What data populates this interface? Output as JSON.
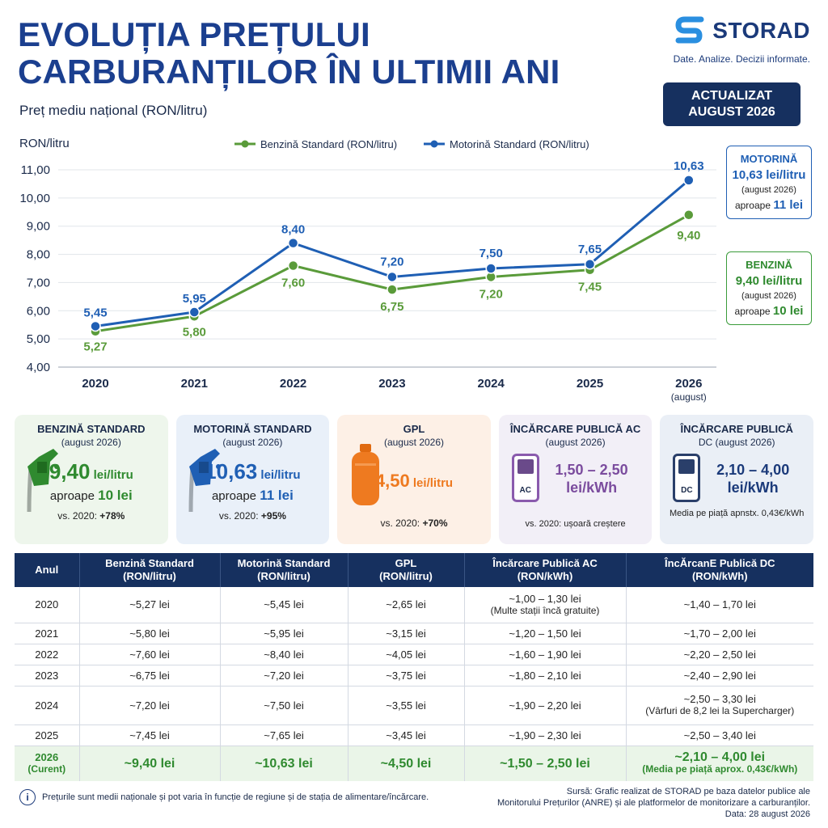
{
  "header": {
    "title": "EVOLUȚIA PREȚULUI CARBURANȚILOR ÎN ULTIMII ANI",
    "subtitle": "Preț mediu național (RON/litru)"
  },
  "brand": {
    "name": "STORAD",
    "tagline": "Date. Analize. Decizii informate.",
    "update_line1": "ACTUALIZAT",
    "update_line2": "AUGUST 2026",
    "logo_icon": "storad-s-logo-icon"
  },
  "colors": {
    "petrol": "#5a9b3a",
    "diesel": "#1f5fb4",
    "lpg": "#ee7a20",
    "ac": "#7b4c9e",
    "dc": "#1b3a7a",
    "navy": "#16305f"
  },
  "chart_data": {
    "type": "line",
    "ylabel": "RON/litru",
    "ylim": [
      4,
      11
    ],
    "yticks": [
      "4,00",
      "5,00",
      "6,00",
      "7,00",
      "8,00",
      "9,00",
      "10,00",
      "11,00"
    ],
    "categories": [
      "2020",
      "2021",
      "2022",
      "2023",
      "2024",
      "2025",
      "2026"
    ],
    "last_category_note": "(august)",
    "grid": "horizontal",
    "legend_position": "top",
    "series": [
      {
        "name": "Benzină Standard (RON/litru)",
        "color": "#5a9b3a",
        "values": [
          5.27,
          5.8,
          7.6,
          6.75,
          7.2,
          7.45,
          9.4
        ],
        "labels": [
          "5,27",
          "5,80",
          "7,60",
          "6,75",
          "7,20",
          "7,45",
          "9,40"
        ]
      },
      {
        "name": "Motorină Standard (RON/litru)",
        "color": "#1f5fb4",
        "values": [
          5.45,
          5.95,
          8.4,
          7.2,
          7.5,
          7.65,
          10.63
        ],
        "labels": [
          "5,45",
          "5,95",
          "8,40",
          "7,20",
          "7,50",
          "7,65",
          "10,63"
        ]
      }
    ]
  },
  "callouts": {
    "diesel": {
      "title": "MOTORINĂ",
      "value": "10,63 lei/litru",
      "date": "(august 2026)",
      "approx_prefix": "aproape",
      "approx_value": "11 lei"
    },
    "petrol": {
      "title": "BENZINĂ",
      "value": "9,40 lei/litru",
      "date": "(august 2026)",
      "approx_prefix": "aproape",
      "approx_value": "10 lei"
    }
  },
  "cards": [
    {
      "title": "BENZINĂ STANDARD",
      "date": "(august 2026)",
      "value": "9,40",
      "unit": "lei/litru",
      "approx_prefix": "aproape",
      "approx_value": "10 lei",
      "vs_label": "vs. 2020:",
      "vs_value": "+78%",
      "icon": "fuel-pump-green-icon"
    },
    {
      "title": "MOTORINĂ STANDARD",
      "date": "(august 2026)",
      "value": "10,63",
      "unit": "lei/litru",
      "approx_prefix": "aproape",
      "approx_value": "11 lei",
      "vs_label": "vs. 2020:",
      "vs_value": "+95%",
      "icon": "fuel-pump-blue-icon"
    },
    {
      "title": "GPL",
      "date": "(august 2026)",
      "value": "4,50",
      "unit": "lei/litru",
      "vs_label": "vs. 2020:",
      "vs_value": "+70%",
      "icon": "gas-cylinder-icon"
    },
    {
      "title": "ÎNCĂRCARE PUBLICĂ AC",
      "date": "(august 2026)",
      "value_line1": "1,50 – 2,50",
      "value_line2": "lei/kWh",
      "vs_text": "vs. 2020: ușoară creștere",
      "chip_label": "AC",
      "icon": "ac-charger-icon"
    },
    {
      "title": "ÎNCĂRCARE PUBLICĂ",
      "title2": "DC (august 2026)",
      "value_line1": "2,10 – 4,00",
      "value_line2": "lei/kWh",
      "note": "Media pe piață apnstx. 0,43€/kWh",
      "chip_label": "DC",
      "icon": "dc-charger-icon"
    }
  ],
  "table": {
    "headers": [
      {
        "l1": "Anul",
        "l2": ""
      },
      {
        "l1": "Benzină Standard",
        "l2": "(RON/litru)"
      },
      {
        "l1": "Motorină Standard",
        "l2": "(RON/litru)"
      },
      {
        "l1": "GPL",
        "l2": "(RON/litru)"
      },
      {
        "l1": "Încărcare Publică AC",
        "l2": "(RON/kWh)"
      },
      {
        "l1": "ÎncĂrcanE Publică DC",
        "l2": "(RON/kWh)"
      }
    ],
    "rows": [
      {
        "year": "2020",
        "petrol": "~5,27 lei",
        "diesel": "~5,45 lei",
        "lpg": "~2,65 lei",
        "ac": "~1,00 – 1,30 lei",
        "ac_note": "(Multe stații încă gratuite)",
        "dc": "~1,40 – 1,70 lei",
        "dc_note": ""
      },
      {
        "year": "2021",
        "petrol": "~5,80 lei",
        "diesel": "~5,95 lei",
        "lpg": "~3,15 lei",
        "ac": "~1,20 – 1,50 lei",
        "ac_note": "",
        "dc": "~1,70 – 2,00 lei",
        "dc_note": ""
      },
      {
        "year": "2022",
        "petrol": "~7,60 lei",
        "diesel": "~8,40 lei",
        "lpg": "~4,05 lei",
        "ac": "~1,60 – 1,90 lei",
        "ac_note": "",
        "dc": "~2,20 – 2,50 lei",
        "dc_note": ""
      },
      {
        "year": "2023",
        "petrol": "~6,75 lei",
        "diesel": "~7,20 lei",
        "lpg": "~3,75 lei",
        "ac": "~1,80 – 2,10 lei",
        "ac_note": "",
        "dc": "~2,40 – 2,90 lei",
        "dc_note": ""
      },
      {
        "year": "2024",
        "petrol": "~7,20 lei",
        "diesel": "~7,50 lei",
        "lpg": "~3,55 lei",
        "ac": "~1,90 – 2,20 lei",
        "ac_note": "",
        "dc": "~2,50 – 3,30 lei",
        "dc_note": "(Vârfuri de 8,2 lei la Supercharger)"
      },
      {
        "year": "2025",
        "petrol": "~7,45 lei",
        "diesel": "~7,65 lei",
        "lpg": "~3,45 lei",
        "ac": "~1,90 – 2,30 lei",
        "ac_note": "",
        "dc": "~2,50 – 3,40 lei",
        "dc_note": ""
      }
    ],
    "current": {
      "year": "2026",
      "year_note": "(Curent)",
      "petrol": "~9,40 lei",
      "diesel": "~10,63 lei",
      "lpg": "~4,50 lei",
      "ac": "~1,50 – 2,50 lei",
      "dc": "~2,10 – 4,00 lei",
      "dc_note": "(Media pe piață aprox. 0,43€/kWh)"
    }
  },
  "footer": {
    "note": "Prețurile sunt medii naționale și pot varia în funcție de regiune și de stația de alimentare/încărcare.",
    "source_line1": "Sursă: Grafic realizat de STORAD pe baza datelor publice ale",
    "source_line2": "Monitorului Prețurilor (ANRE) și ale platformelor de monitorizare a carburanților.",
    "source_line3": "Data: 28 august 2026"
  }
}
